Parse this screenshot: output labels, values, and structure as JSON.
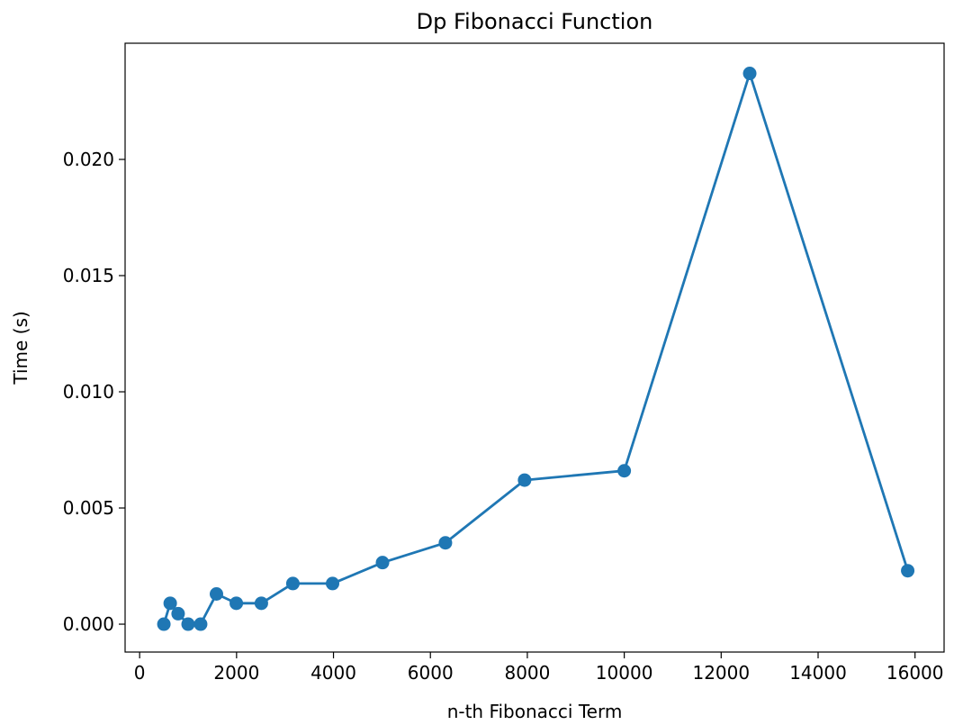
{
  "chart_data": {
    "type": "line",
    "title": "Dp Fibonacci Function",
    "xlabel": "n-th Fibonacci Term",
    "ylabel": "Time (s)",
    "xlim": [
      -300,
      16600
    ],
    "ylim": [
      -0.0012,
      0.025
    ],
    "xticks": [
      0,
      2000,
      4000,
      6000,
      8000,
      10000,
      12000,
      14000,
      16000
    ],
    "xtick_labels": [
      "0",
      "2000",
      "4000",
      "6000",
      "8000",
      "10000",
      "12000",
      "14000",
      "16000"
    ],
    "yticks": [
      0.0,
      0.005,
      0.01,
      0.015,
      0.02
    ],
    "ytick_labels": [
      "0.000",
      "0.005",
      "0.010",
      "0.015",
      "0.020"
    ],
    "grid": false,
    "series": [
      {
        "color": "#1f77b4",
        "marker": "circle",
        "x": [
          500,
          631,
          794,
          1000,
          1259,
          1585,
          1995,
          2512,
          3162,
          3981,
          5012,
          6310,
          7943,
          10000,
          12589,
          15849
        ],
        "y": [
          0.0,
          0.0009,
          0.00045,
          0.0,
          0.0,
          0.0013,
          0.0009,
          0.0009,
          0.00175,
          0.00175,
          0.00265,
          0.0035,
          0.0062,
          0.0066,
          0.0237,
          0.0023
        ]
      }
    ]
  }
}
